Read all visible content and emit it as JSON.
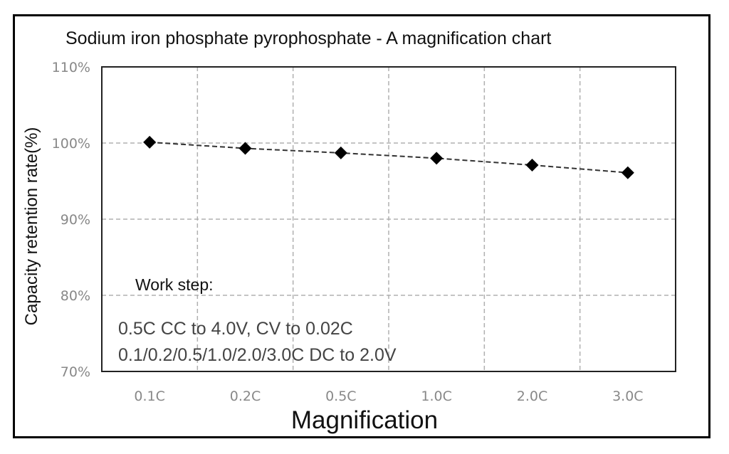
{
  "chart_data": {
    "type": "line",
    "title": "Sodium iron phosphate pyrophosphate - A magnification chart",
    "xlabel": "Magnification",
    "ylabel": "Capacity retention rate(%)",
    "categories": [
      "0.1C",
      "0.2C",
      "0.5C",
      "1.0C",
      "2.0C",
      "3.0C"
    ],
    "values": [
      100.1,
      99.3,
      98.7,
      98.0,
      97.1,
      96.1
    ],
    "ylim": [
      70,
      110
    ],
    "yticks": [
      "70%",
      "80%",
      "90%",
      "100%",
      "110%"
    ],
    "grid": true,
    "marker": "diamond",
    "line_style": "dashed",
    "colors": {
      "series": "#000000",
      "grid": "#b0b0b0",
      "tick_text": "#888888"
    },
    "annotation": {
      "heading": "Work step:",
      "lines": [
        "0.5C CC to 4.0V, CV to 0.02C",
        "0.1/0.2/0.5/1.0/2.0/3.0C DC to 2.0V"
      ]
    }
  }
}
